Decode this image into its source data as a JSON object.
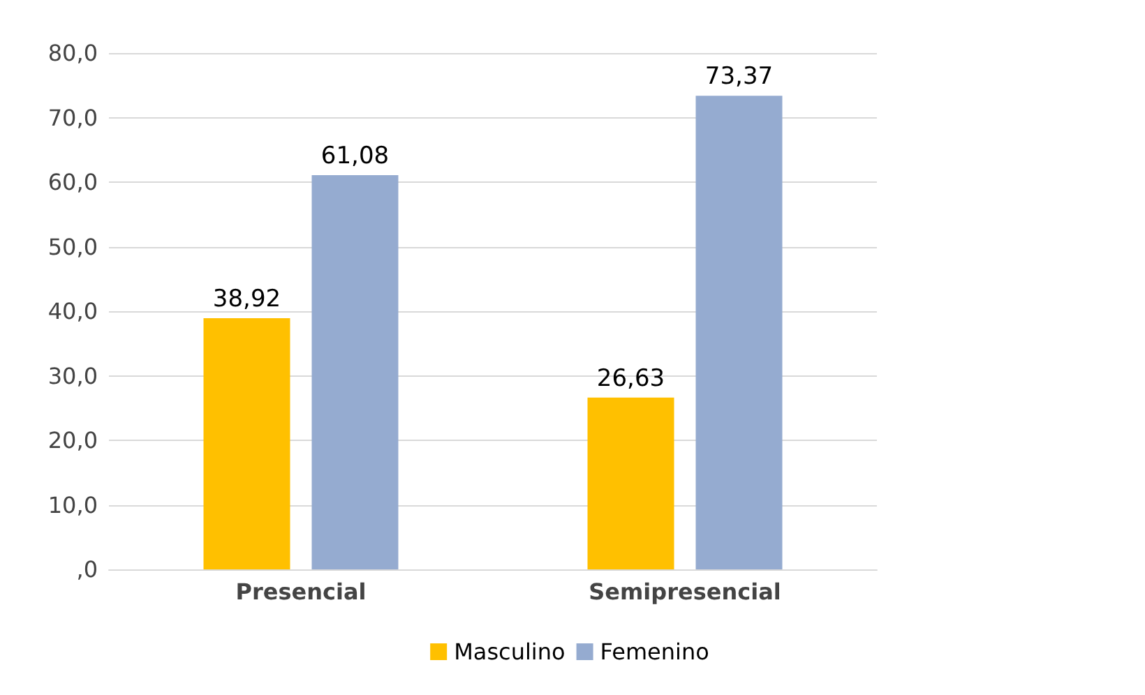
{
  "chart_data": {
    "type": "bar",
    "categories": [
      "Presencial",
      "Semipresencial"
    ],
    "series": [
      {
        "name": "Masculino",
        "color": "#ffc000",
        "values": [
          38.92,
          26.63
        ],
        "value_labels": [
          "38,92",
          "26,63"
        ]
      },
      {
        "name": "Femenino",
        "color": "#95abd0",
        "values": [
          61.08,
          73.37
        ],
        "value_labels": [
          "61,08",
          "73,37"
        ]
      }
    ],
    "ylim": [
      0,
      80
    ],
    "yticks": [
      {
        "value": 0,
        "label": ",0"
      },
      {
        "value": 10,
        "label": "10,0"
      },
      {
        "value": 20,
        "label": "20,0"
      },
      {
        "value": 30,
        "label": "30,0"
      },
      {
        "value": 40,
        "label": "40,0"
      },
      {
        "value": 50,
        "label": "50,0"
      },
      {
        "value": 60,
        "label": "60,0"
      },
      {
        "value": 70,
        "label": "70,0"
      },
      {
        "value": 80,
        "label": "80,0"
      }
    ],
    "grid": "y",
    "legend": "bottom"
  }
}
